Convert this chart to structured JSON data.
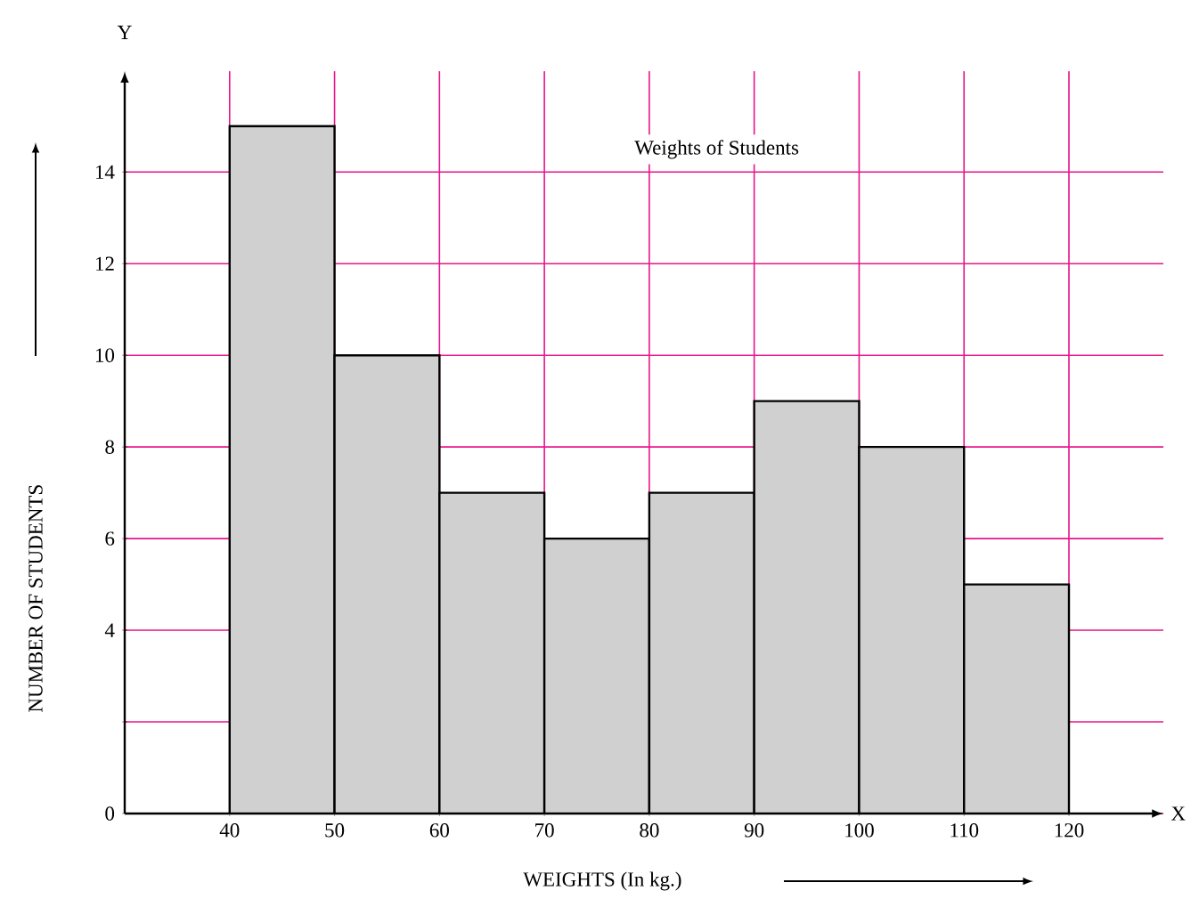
{
  "chart_data": {
    "type": "histogram",
    "title": "Weights of Students",
    "xlabel": "WEIGHTS (In kg.)",
    "ylabel": "NUMBER OF STUDENTS",
    "bins": [
      40,
      50,
      60,
      70,
      80,
      90,
      100,
      110,
      120
    ],
    "values": [
      15,
      10,
      7,
      6,
      7,
      9,
      8,
      5
    ],
    "color": "#d0d0d0",
    "xlim": [
      30,
      129
    ],
    "ylim": [
      0,
      16.2
    ],
    "xticks": [
      40,
      50,
      60,
      70,
      80,
      90,
      100,
      110,
      120
    ],
    "yticks": [
      0,
      {
        "value": 2,
        "label": null
      },
      4,
      6,
      8,
      10,
      12,
      14
    ],
    "grid": true,
    "annotations": [
      "Y",
      "X"
    ]
  }
}
